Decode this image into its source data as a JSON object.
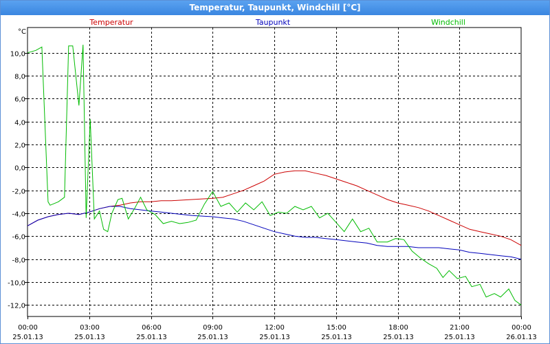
{
  "window": {
    "title": "Temperatur, Taupunkt, Windchill [°C]"
  },
  "chart_data": {
    "type": "line",
    "ylabel": "°C",
    "ylim": [
      -13,
      12.2
    ],
    "yticks": [
      "10,0",
      "8,0",
      "6,0",
      "4,0",
      "2,0",
      "0,0",
      "-2,0",
      "-4,0",
      "-6,0",
      "-8,0",
      "-10,0",
      "-12,0"
    ],
    "ytick_values": [
      10,
      8,
      6,
      4,
      2,
      0,
      -2,
      -4,
      -6,
      -8,
      -10,
      -12
    ],
    "xlim": [
      0,
      24
    ],
    "xticks": [
      {
        "time": "00:00",
        "date": "25.01.13",
        "h": 0
      },
      {
        "time": "03:00",
        "date": "25.01.13",
        "h": 3
      },
      {
        "time": "06:00",
        "date": "25.01.13",
        "h": 6
      },
      {
        "time": "09:00",
        "date": "25.01.13",
        "h": 9
      },
      {
        "time": "12:00",
        "date": "25.01.13",
        "h": 12
      },
      {
        "time": "15:00",
        "date": "25.01.13",
        "h": 15
      },
      {
        "time": "18:00",
        "date": "25.01.13",
        "h": 18
      },
      {
        "time": "21:00",
        "date": "25.01.13",
        "h": 21
      },
      {
        "time": "00:00",
        "date": "26.01.13",
        "h": 24
      }
    ],
    "grid": true,
    "series": [
      {
        "name": "Temperatur",
        "color": "#cc0000",
        "points": [
          [
            0,
            -5.1
          ],
          [
            0.5,
            -4.6
          ],
          [
            1,
            -4.3
          ],
          [
            1.5,
            -4.1
          ],
          [
            2,
            -4.0
          ],
          [
            2.5,
            -4.1
          ],
          [
            3,
            -3.9
          ],
          [
            3.5,
            -3.6
          ],
          [
            4,
            -3.4
          ],
          [
            4.5,
            -3.3
          ],
          [
            5,
            -3.1
          ],
          [
            5.5,
            -3.0
          ],
          [
            6,
            -3.0
          ],
          [
            6.5,
            -2.9
          ],
          [
            7,
            -2.9
          ],
          [
            8,
            -2.8
          ],
          [
            9,
            -2.7
          ],
          [
            9.5,
            -2.6
          ],
          [
            10,
            -2.3
          ],
          [
            10.5,
            -2.0
          ],
          [
            11,
            -1.6
          ],
          [
            11.5,
            -1.2
          ],
          [
            12,
            -0.6
          ],
          [
            12.5,
            -0.4
          ],
          [
            13,
            -0.3
          ],
          [
            13.5,
            -0.3
          ],
          [
            14,
            -0.5
          ],
          [
            14.5,
            -0.7
          ],
          [
            15,
            -1.0
          ],
          [
            15.5,
            -1.3
          ],
          [
            16,
            -1.6
          ],
          [
            16.5,
            -2.0
          ],
          [
            17,
            -2.4
          ],
          [
            17.5,
            -2.8
          ],
          [
            18,
            -3.1
          ],
          [
            18.5,
            -3.3
          ],
          [
            19,
            -3.5
          ],
          [
            19.5,
            -3.8
          ],
          [
            20,
            -4.2
          ],
          [
            20.5,
            -4.6
          ],
          [
            21,
            -5.0
          ],
          [
            21.5,
            -5.4
          ],
          [
            22,
            -5.6
          ],
          [
            22.5,
            -5.8
          ],
          [
            23,
            -6.0
          ],
          [
            23.5,
            -6.3
          ],
          [
            24,
            -6.8
          ]
        ]
      },
      {
        "name": "Taupunkt",
        "color": "#0000bb",
        "points": [
          [
            0,
            -5.1
          ],
          [
            0.5,
            -4.6
          ],
          [
            1,
            -4.3
          ],
          [
            1.5,
            -4.1
          ],
          [
            2,
            -4.0
          ],
          [
            2.5,
            -4.1
          ],
          [
            3,
            -3.9
          ],
          [
            3.5,
            -3.6
          ],
          [
            4,
            -3.4
          ],
          [
            4.5,
            -3.4
          ],
          [
            5,
            -3.6
          ],
          [
            5.5,
            -3.7
          ],
          [
            6,
            -3.8
          ],
          [
            6.5,
            -3.9
          ],
          [
            7,
            -4.0
          ],
          [
            8,
            -4.2
          ],
          [
            9,
            -4.3
          ],
          [
            9.5,
            -4.4
          ],
          [
            10,
            -4.5
          ],
          [
            10.5,
            -4.7
          ],
          [
            11,
            -5.0
          ],
          [
            11.5,
            -5.3
          ],
          [
            12,
            -5.6
          ],
          [
            12.5,
            -5.8
          ],
          [
            13,
            -6.0
          ],
          [
            13.5,
            -6.1
          ],
          [
            14,
            -6.1
          ],
          [
            14.5,
            -6.2
          ],
          [
            15,
            -6.3
          ],
          [
            15.5,
            -6.4
          ],
          [
            16,
            -6.5
          ],
          [
            16.5,
            -6.6
          ],
          [
            17,
            -6.8
          ],
          [
            17.5,
            -6.9
          ],
          [
            18,
            -6.9
          ],
          [
            18.5,
            -6.9
          ],
          [
            19,
            -7.0
          ],
          [
            19.5,
            -7.0
          ],
          [
            20,
            -7.0
          ],
          [
            20.5,
            -7.1
          ],
          [
            21,
            -7.2
          ],
          [
            21.5,
            -7.4
          ],
          [
            22,
            -7.5
          ],
          [
            22.5,
            -7.6
          ],
          [
            23,
            -7.7
          ],
          [
            23.5,
            -7.8
          ],
          [
            24,
            -8.0
          ]
        ]
      },
      {
        "name": "Windchill",
        "color": "#00bb00",
        "points": [
          [
            0,
            10.0
          ],
          [
            0.4,
            10.2
          ],
          [
            0.7,
            10.5
          ],
          [
            1.0,
            -3.0
          ],
          [
            1.1,
            -3.3
          ],
          [
            1.5,
            -3.0
          ],
          [
            1.8,
            -2.6
          ],
          [
            2.0,
            10.6
          ],
          [
            2.2,
            10.6
          ],
          [
            2.5,
            5.4
          ],
          [
            2.7,
            10.7
          ],
          [
            2.85,
            -4.4
          ],
          [
            3.05,
            4.2
          ],
          [
            3.25,
            -4.5
          ],
          [
            3.5,
            -3.8
          ],
          [
            3.7,
            -5.4
          ],
          [
            3.9,
            -5.6
          ],
          [
            4.1,
            -4.0
          ],
          [
            4.4,
            -2.8
          ],
          [
            4.6,
            -2.7
          ],
          [
            4.9,
            -4.5
          ],
          [
            5.2,
            -3.6
          ],
          [
            5.5,
            -2.6
          ],
          [
            5.8,
            -3.7
          ],
          [
            6.2,
            -4.1
          ],
          [
            6.6,
            -4.9
          ],
          [
            7.0,
            -4.7
          ],
          [
            7.4,
            -4.9
          ],
          [
            7.8,
            -4.8
          ],
          [
            8.2,
            -4.6
          ],
          [
            8.6,
            -3.2
          ],
          [
            9.0,
            -2.1
          ],
          [
            9.4,
            -3.4
          ],
          [
            9.8,
            -3.1
          ],
          [
            10.2,
            -3.9
          ],
          [
            10.6,
            -3.1
          ],
          [
            11.0,
            -3.7
          ],
          [
            11.4,
            -3.0
          ],
          [
            11.8,
            -4.2
          ],
          [
            12.2,
            -3.9
          ],
          [
            12.6,
            -4.0
          ],
          [
            13.0,
            -3.4
          ],
          [
            13.4,
            -3.7
          ],
          [
            13.8,
            -3.4
          ],
          [
            14.2,
            -4.4
          ],
          [
            14.6,
            -4.0
          ],
          [
            15.0,
            -4.8
          ],
          [
            15.4,
            -5.6
          ],
          [
            15.8,
            -4.5
          ],
          [
            16.2,
            -5.6
          ],
          [
            16.6,
            -5.3
          ],
          [
            17.0,
            -6.5
          ],
          [
            17.5,
            -6.5
          ],
          [
            17.9,
            -6.2
          ],
          [
            18.3,
            -6.3
          ],
          [
            18.7,
            -7.3
          ],
          [
            19.1,
            -7.9
          ],
          [
            19.5,
            -8.4
          ],
          [
            19.9,
            -8.8
          ],
          [
            20.2,
            -9.6
          ],
          [
            20.5,
            -9.0
          ],
          [
            20.9,
            -9.7
          ],
          [
            21.3,
            -9.5
          ],
          [
            21.6,
            -10.4
          ],
          [
            22.0,
            -10.2
          ],
          [
            22.3,
            -11.3
          ],
          [
            22.7,
            -11.0
          ],
          [
            23.0,
            -11.3
          ],
          [
            23.4,
            -10.6
          ],
          [
            23.7,
            -11.6
          ],
          [
            24.0,
            -12.0
          ]
        ]
      }
    ]
  }
}
